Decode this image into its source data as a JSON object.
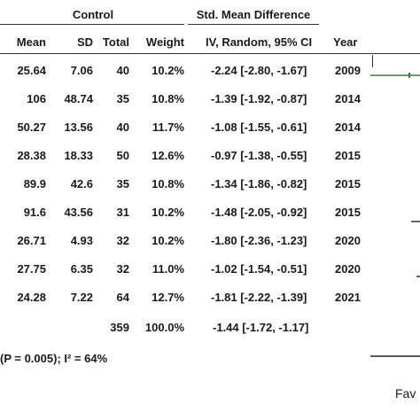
{
  "chart_data": {
    "type": "table",
    "group_label": "Control",
    "effect_header": "Std. Mean Difference",
    "columns": [
      "Mean",
      "SD",
      "Total",
      "Weight",
      "IV, Random, 95% CI",
      "Year"
    ],
    "rows": [
      {
        "mean": "25.64",
        "sd": "7.06",
        "total": "40",
        "weight": "10.2%",
        "ci": "-2.24 [-2.80, -1.67]",
        "year": "2009"
      },
      {
        "mean": "106",
        "sd": "48.74",
        "total": "35",
        "weight": "10.8%",
        "ci": "-1.39 [-1.92, -0.87]",
        "year": "2014"
      },
      {
        "mean": "50.27",
        "sd": "13.56",
        "total": "40",
        "weight": "11.7%",
        "ci": "-1.08 [-1.55, -0.61]",
        "year": "2014"
      },
      {
        "mean": "28.38",
        "sd": "18.33",
        "total": "50",
        "weight": "12.6%",
        "ci": "-0.97 [-1.38, -0.55]",
        "year": "2015"
      },
      {
        "mean": "89.9",
        "sd": "42.6",
        "total": "35",
        "weight": "10.8%",
        "ci": "-1.34 [-1.86, -0.82]",
        "year": "2015"
      },
      {
        "mean": "91.6",
        "sd": "43.56",
        "total": "31",
        "weight": "10.2%",
        "ci": "-1.48 [-2.05, -0.92]",
        "year": "2015"
      },
      {
        "mean": "26.71",
        "sd": "4.93",
        "total": "32",
        "weight": "10.2%",
        "ci": "-1.80 [-2.36, -1.23]",
        "year": "2020"
      },
      {
        "mean": "27.75",
        "sd": "6.35",
        "total": "32",
        "weight": "11.0%",
        "ci": "-1.02 [-1.54, -0.51]",
        "year": "2020"
      },
      {
        "mean": "24.28",
        "sd": "7.22",
        "total": "64",
        "weight": "12.7%",
        "ci": "-1.81 [-2.22, -1.39]",
        "year": "2021"
      }
    ],
    "total": {
      "total": "359",
      "weight": "100.0%",
      "ci": "-1.44 [-1.72, -1.17]"
    },
    "heterogeneity": "(P = 0.005); I² = 64%",
    "favours_text": "Fav"
  }
}
